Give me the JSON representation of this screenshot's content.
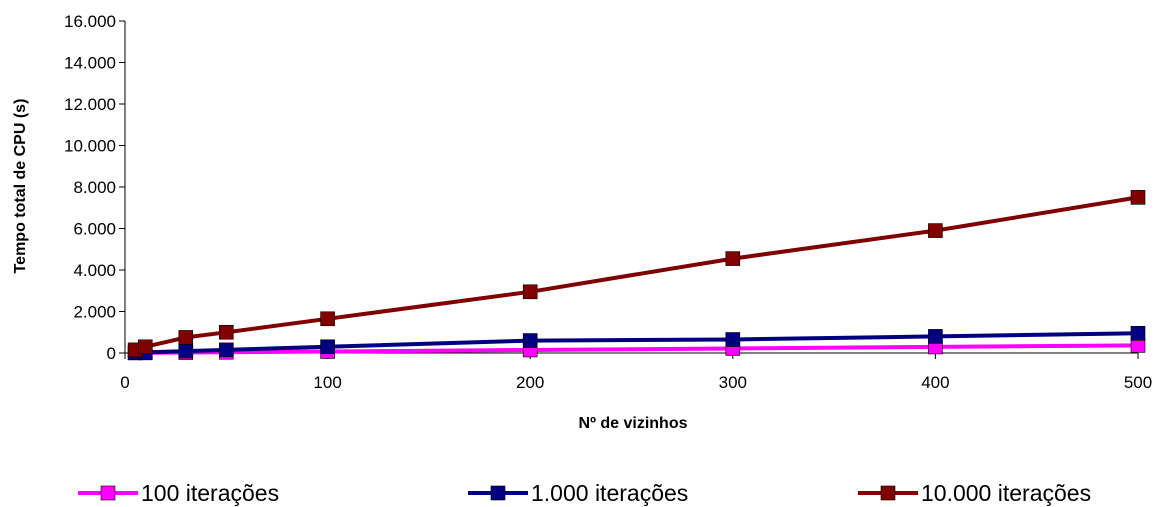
{
  "chart_data": {
    "type": "line",
    "title": "",
    "xlabel": "Nº de vizinhos",
    "ylabel": "Tempo total de CPU (s)",
    "xlim": [
      0,
      500
    ],
    "ylim": [
      0,
      16000
    ],
    "x_ticks": [
      0,
      100,
      200,
      300,
      400,
      500
    ],
    "x_tick_labels": [
      "0",
      "100",
      "200",
      "300",
      "400",
      "500"
    ],
    "y_ticks": [
      0,
      2000,
      4000,
      6000,
      8000,
      10000,
      12000,
      14000,
      16000
    ],
    "y_tick_labels": [
      "0",
      "2.000",
      "4.000",
      "6.000",
      "8.000",
      "10.000",
      "12.000",
      "14.000",
      "16.000"
    ],
    "grid": false,
    "legend_position": "bottom",
    "series": [
      {
        "name": "100 iterações",
        "color": "#ff00ff",
        "points": [
          [
            5,
            4
          ],
          [
            10,
            7
          ],
          [
            30,
            22
          ],
          [
            50,
            37
          ],
          [
            100,
            73
          ],
          [
            200,
            146
          ],
          [
            300,
            219
          ],
          [
            400,
            292
          ],
          [
            500,
            365
          ]
        ]
      },
      {
        "name": "1.000 iterações",
        "color": "#000080",
        "points": [
          [
            5,
            15
          ],
          [
            10,
            30
          ],
          [
            30,
            90
          ],
          [
            50,
            150
          ],
          [
            100,
            300
          ],
          [
            200,
            600
          ],
          [
            300,
            650
          ],
          [
            400,
            800
          ],
          [
            500,
            950
          ]
        ]
      },
      {
        "name": "10.000 iterações",
        "color": "#800000",
        "points": [
          [
            5,
            150
          ],
          [
            10,
            300
          ],
          [
            30,
            750
          ],
          [
            50,
            1000
          ],
          [
            100,
            1650
          ],
          [
            200,
            2950
          ],
          [
            300,
            4550
          ],
          [
            400,
            5900
          ],
          [
            500,
            7500
          ]
        ]
      }
    ]
  }
}
